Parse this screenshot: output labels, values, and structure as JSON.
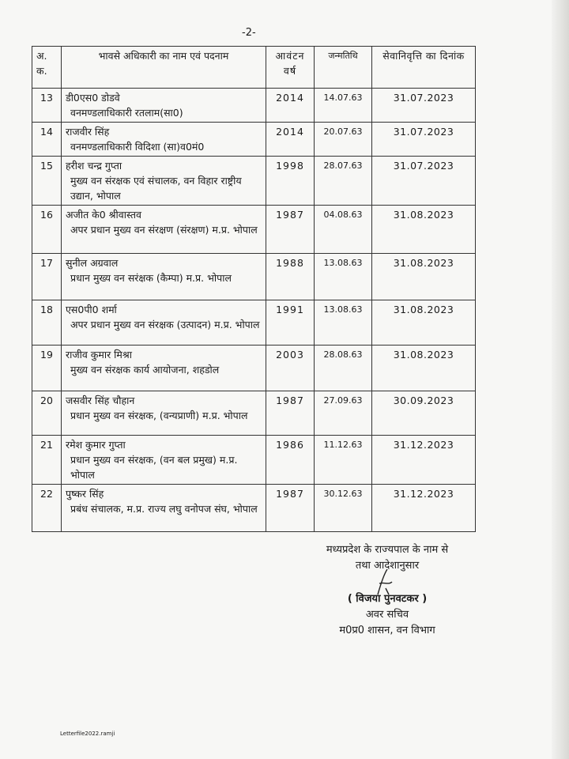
{
  "page_number": "-2-",
  "table": {
    "headers": [
      "अ. क.",
      "भावसे अधिकारी का नाम एवं पदनाम",
      "आवंटन वर्ष",
      "जन्मतिथि",
      "सेवानिवृत्ति का दिनांक"
    ],
    "rows": [
      {
        "sn": "13",
        "name": "डी0एस0 डोडवे",
        "designation": "वनमण्डलाधिकारी रतलाम(सा0)",
        "allotment_year": "2014",
        "dob": "14.07.63",
        "retirement": "31.07.2023"
      },
      {
        "sn": "14",
        "name": "राजवीर सिंह",
        "designation": "वनमण्डलाधिकारी विदिशा (सा)व0मं0",
        "allotment_year": "2014",
        "dob": "20.07.63",
        "retirement": "31.07.2023"
      },
      {
        "sn": "15",
        "name": "हरीश चन्द्र गुप्ता",
        "designation": "मुख्य वन संरक्षक एवं संचालक, वन विहार राष्ट्रीय उद्यान, भोपाल",
        "allotment_year": "1998",
        "dob": "28.07.63",
        "retirement": "31.07.2023"
      },
      {
        "sn": "16",
        "name": "अजीत के0 श्रीवास्तव",
        "designation": "अपर प्रधान मुख्य वन संरक्षण (संरक्षण) म.प्र. भोपाल",
        "allotment_year": "1987",
        "dob": "04.08.63",
        "retirement": "31.08.2023"
      },
      {
        "sn": "17",
        "name": "सुनील अग्रवाल",
        "designation": "प्रधान मुख्य वन सरंक्षक (कैम्पा) म.प्र. भोपाल",
        "allotment_year": "1988",
        "dob": "13.08.63",
        "retirement": "31.08.2023"
      },
      {
        "sn": "18",
        "name": "एस0पी0 शर्मा",
        "designation": "अपर प्रधान मुख्य वन संरक्षक (उत्पादन) म.प्र. भोपाल",
        "allotment_year": "1991",
        "dob": "13.08.63",
        "retirement": "31.08.2023"
      },
      {
        "sn": "19",
        "name": "राजीव कुमार मिश्रा",
        "designation": "मुख्य वन संरक्षक कार्य आयोजना, शहडोल",
        "allotment_year": "2003",
        "dob": "28.08.63",
        "retirement": "31.08.2023"
      },
      {
        "sn": "20",
        "name": "जसवीर सिंह चौहान",
        "designation": "प्रधान मुख्य वन संरक्षक, (वन्यप्राणी) म.प्र. भोपाल",
        "allotment_year": "1987",
        "dob": "27.09.63",
        "retirement": "30.09.2023"
      },
      {
        "sn": "21",
        "name": "रमेश कुमार गुप्ता",
        "designation": "प्रधान मुख्य वन संरक्षक, (वन बल प्रमुख) म.प्र. भोपाल",
        "allotment_year": "1986",
        "dob": "11.12.63",
        "retirement": "31.12.2023"
      },
      {
        "sn": "22",
        "name": "पुष्कर सिंह",
        "designation": "प्रबंध संचालक, म.प्र. राज्य लघु वनोपज संघ, भोपाल",
        "allotment_year": "1987",
        "dob": "30.12.63",
        "retirement": "31.12.2023"
      }
    ]
  },
  "signature_block": {
    "line1": "मध्यप्रदेश के राज्यपाल के नाम से",
    "line2": "तथा आदेशानुसार",
    "signatory": "( विजया पुनवटकर )",
    "designation": "अवर सचिव",
    "department": "म0प्र0 शासन, वन विभाग"
  },
  "footer": "Letterfile2022.ramji"
}
